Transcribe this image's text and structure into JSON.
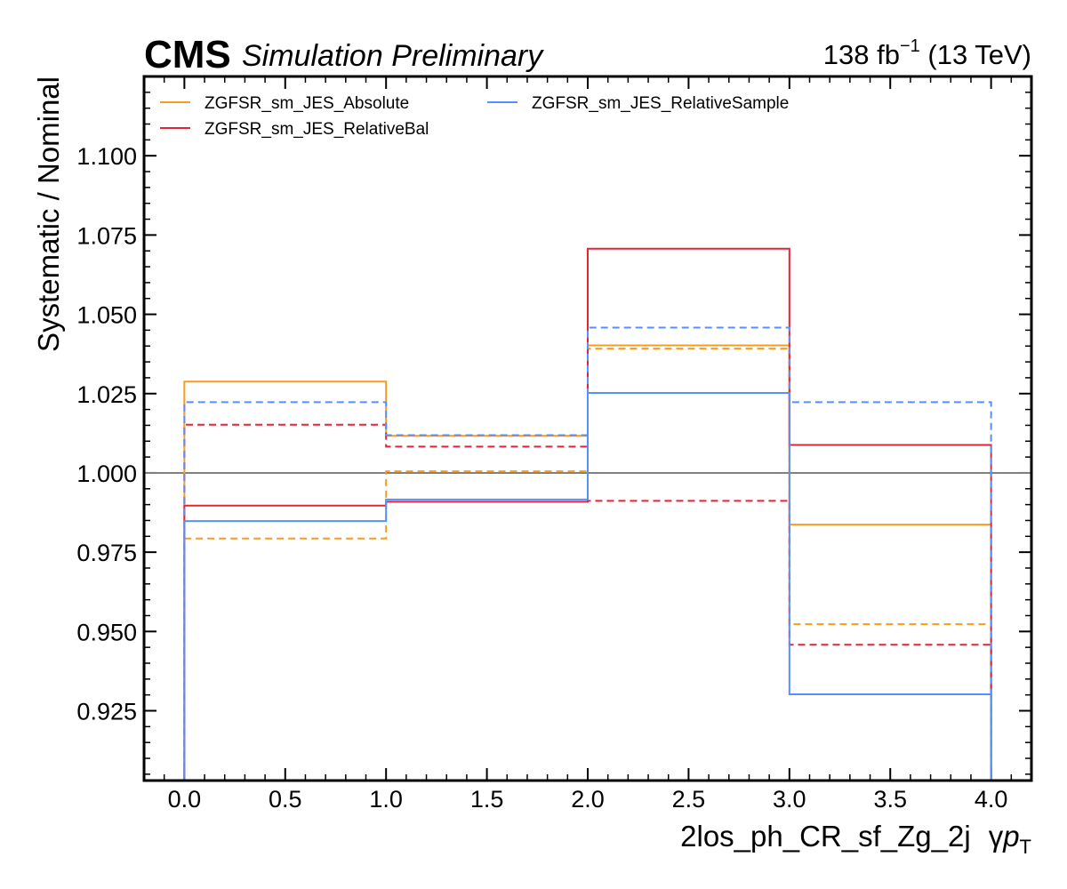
{
  "header": {
    "experiment": "CMS",
    "status": "Simulation Preliminary",
    "lumi_value": "138 fb",
    "lumi_exponent": "−1",
    "energy": " (13 TeV)"
  },
  "chart_data": {
    "type": "line",
    "style": "step",
    "xlabel": "2los_ph_CR_sf_Zg_2j",
    "xlabel_variable": "γ",
    "xlabel_symbol": "p",
    "xlabel_subscript": "T",
    "ylabel": "Systematic / Nominal",
    "xlim": [
      -0.2,
      4.2
    ],
    "ylim": [
      0.903,
      1.125
    ],
    "xticks": [
      0.0,
      0.5,
      1.0,
      1.5,
      2.0,
      2.5,
      3.0,
      3.5,
      4.0
    ],
    "xtick_labels": [
      "0.0",
      "0.5",
      "1.0",
      "1.5",
      "2.0",
      "2.5",
      "3.0",
      "3.5",
      "4.0"
    ],
    "yticks": [
      0.925,
      0.95,
      0.975,
      1.0,
      1.025,
      1.05,
      1.075,
      1.1
    ],
    "ytick_labels": [
      "0.925",
      "0.950",
      "0.975",
      "1.000",
      "1.025",
      "1.050",
      "1.075",
      "1.100"
    ],
    "reference_line": 1.0,
    "bin_edges": [
      0,
      1,
      2,
      3,
      4
    ],
    "legend_position": "top-left",
    "series": [
      {
        "name": "ZGFSR_sm_JES_Absolute",
        "variation": "up",
        "dash": "solid",
        "color": "#f89c20",
        "values": [
          1.0288,
          1.0117,
          1.0402,
          0.9837
        ]
      },
      {
        "name": "",
        "variation": "down",
        "dash": "dashed",
        "color": "#f89c20",
        "values": [
          0.9793,
          1.0005,
          1.0392,
          0.9523
        ]
      },
      {
        "name": "ZGFSR_sm_JES_RelativeBal",
        "variation": "up",
        "dash": "solid",
        "color": "#e42536",
        "values": [
          0.9897,
          0.9909,
          1.0707,
          1.0088
        ]
      },
      {
        "name": "",
        "variation": "down",
        "dash": "dashed",
        "color": "#e42536",
        "values": [
          1.0152,
          1.0083,
          0.9912,
          0.9458
        ]
      },
      {
        "name": "ZGFSR_sm_JES_RelativeSample",
        "variation": "up",
        "dash": "solid",
        "color": "#5790fc",
        "values": [
          0.9848,
          0.9916,
          1.0252,
          0.9302
        ]
      },
      {
        "name": "",
        "variation": "down",
        "dash": "dashed",
        "color": "#5790fc",
        "values": [
          1.0223,
          1.0119,
          1.0458,
          1.0223
        ]
      }
    ]
  }
}
